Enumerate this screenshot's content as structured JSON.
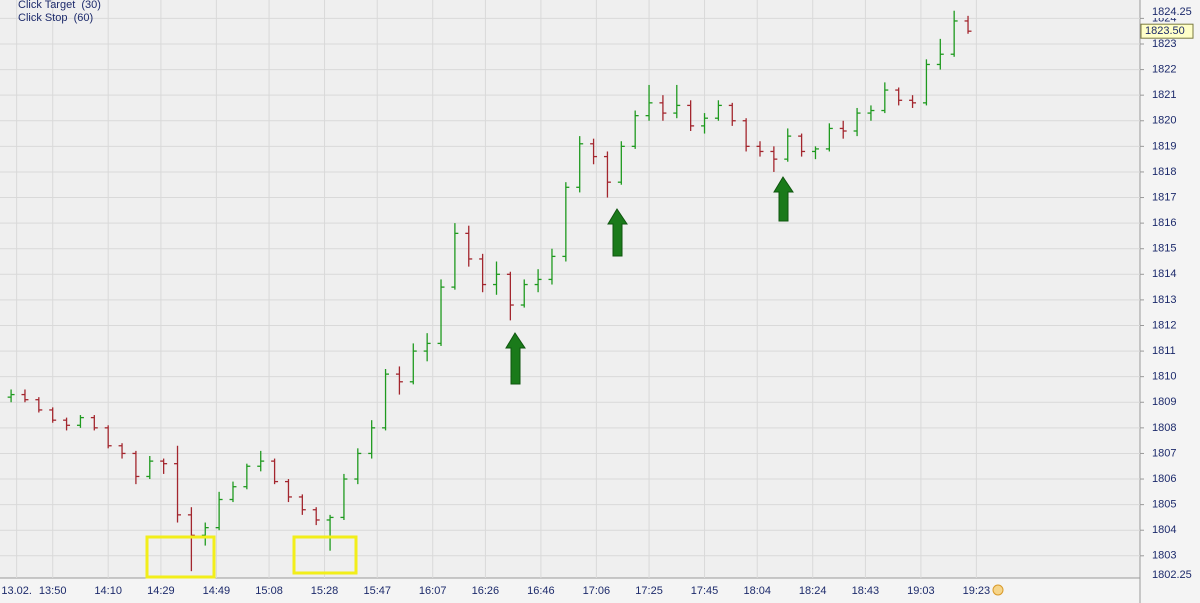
{
  "chart_data": {
    "type": "ohlc",
    "annotations": [
      "Click Target  (30)",
      "Click Stop  (60)"
    ],
    "x": [
      815,
      820,
      825,
      830,
      835,
      840,
      845,
      850,
      855,
      860,
      865,
      870,
      875,
      880,
      885,
      890,
      895,
      900,
      905,
      910,
      915,
      920,
      925,
      930,
      935,
      940,
      945,
      950,
      955,
      960,
      965,
      970,
      975,
      980,
      985,
      990,
      995,
      1000,
      1005,
      1010,
      1015,
      1020,
      1025,
      1030,
      1035,
      1040,
      1045,
      1050,
      1055,
      1060,
      1065,
      1070,
      1075,
      1080,
      1085,
      1090,
      1095,
      1100,
      1105,
      1110,
      1115,
      1120,
      1125,
      1130,
      1135,
      1140,
      1145,
      1150,
      1155,
      1160
    ],
    "open": [
      1809.2,
      1809.3,
      1809.1,
      1808.7,
      1808.3,
      1808.1,
      1808.4,
      1808.0,
      1807.3,
      1807.0,
      1806.1,
      1806.7,
      1806.6,
      1804.6,
      1803.8,
      1804.1,
      1805.2,
      1805.7,
      1806.5,
      1806.7,
      1805.9,
      1805.3,
      1804.8,
      1804.4,
      1804.5,
      1806.0,
      1807.0,
      1808.0,
      1810.1,
      1809.8,
      1811.0,
      1811.3,
      1813.5,
      1815.6,
      1814.6,
      1813.6,
      1814.0,
      1812.8,
      1813.6,
      1813.8,
      1814.7,
      1817.4,
      1819.1,
      1818.6,
      1817.6,
      1819.0,
      1820.2,
      1820.7,
      1820.3,
      1820.6,
      1819.8,
      1820.1,
      1820.6,
      1820.0,
      1819.0,
      1818.8,
      1818.5,
      1819.4,
      1818.8,
      1818.9,
      1819.7,
      1819.6,
      1820.3,
      1820.4,
      1821.2,
      1820.8,
      1820.7,
      1822.2,
      1822.6,
      1823.9
    ],
    "high": [
      1809.5,
      1809.5,
      1809.2,
      1808.8,
      1808.4,
      1808.5,
      1808.5,
      1808.1,
      1807.4,
      1807.1,
      1806.9,
      1806.8,
      1807.3,
      1804.9,
      1804.3,
      1805.5,
      1805.9,
      1806.6,
      1807.1,
      1806.8,
      1806.0,
      1805.4,
      1804.9,
      1804.6,
      1806.2,
      1807.2,
      1808.3,
      1810.3,
      1810.4,
      1811.3,
      1811.7,
      1813.8,
      1816.0,
      1815.9,
      1814.8,
      1814.5,
      1814.1,
      1813.8,
      1814.2,
      1815.0,
      1817.6,
      1819.4,
      1819.3,
      1818.8,
      1819.2,
      1820.4,
      1821.4,
      1821.0,
      1821.4,
      1820.8,
      1820.3,
      1820.8,
      1820.7,
      1820.1,
      1819.2,
      1819.0,
      1819.7,
      1819.5,
      1819.0,
      1819.9,
      1820.0,
      1820.5,
      1820.6,
      1821.5,
      1821.3,
      1821.0,
      1822.4,
      1823.2,
      1824.3,
      1824.1
    ],
    "low": [
      1809.0,
      1809.0,
      1808.6,
      1808.2,
      1807.9,
      1808.0,
      1807.9,
      1807.2,
      1806.8,
      1805.8,
      1806.0,
      1806.2,
      1804.3,
      1802.4,
      1803.4,
      1804.0,
      1805.1,
      1805.6,
      1806.3,
      1805.8,
      1805.1,
      1804.6,
      1804.2,
      1803.2,
      1804.4,
      1805.8,
      1806.8,
      1807.9,
      1809.3,
      1809.7,
      1810.6,
      1811.2,
      1813.4,
      1814.3,
      1813.3,
      1813.2,
      1812.2,
      1812.7,
      1813.3,
      1813.6,
      1814.5,
      1817.2,
      1818.3,
      1817.0,
      1817.5,
      1818.9,
      1820.0,
      1820.0,
      1820.1,
      1819.6,
      1819.5,
      1820.0,
      1819.8,
      1818.8,
      1818.6,
      1818.0,
      1818.4,
      1818.6,
      1818.5,
      1818.8,
      1819.3,
      1819.4,
      1820.0,
      1820.3,
      1820.6,
      1820.5,
      1820.6,
      1822.0,
      1822.5,
      1823.4
    ],
    "close": [
      1809.3,
      1809.1,
      1808.7,
      1808.3,
      1808.1,
      1808.4,
      1808.0,
      1807.3,
      1807.0,
      1806.1,
      1806.7,
      1806.6,
      1804.6,
      1803.8,
      1804.1,
      1805.2,
      1805.7,
      1806.5,
      1806.7,
      1805.9,
      1805.3,
      1804.8,
      1804.4,
      1804.5,
      1806.0,
      1807.0,
      1808.0,
      1810.1,
      1809.8,
      1811.0,
      1811.3,
      1813.5,
      1815.6,
      1814.6,
      1813.6,
      1814.0,
      1812.8,
      1813.6,
      1813.8,
      1814.7,
      1817.4,
      1819.1,
      1818.6,
      1817.6,
      1819.0,
      1820.2,
      1820.7,
      1820.3,
      1820.6,
      1819.8,
      1820.1,
      1820.6,
      1820.0,
      1819.0,
      1818.8,
      1818.5,
      1819.4,
      1818.8,
      1818.9,
      1819.7,
      1819.6,
      1820.3,
      1820.4,
      1821.2,
      1820.8,
      1820.7,
      1822.2,
      1822.6,
      1823.9,
      1823.5
    ],
    "up_color": "#1f9a1f",
    "down_color": "#a3262e",
    "last_price": {
      "value": 1823.5,
      "label": "1823.50"
    },
    "xlim": [
      811,
      1222
    ],
    "xticks": [
      {
        "value": 817,
        "label": "13.02."
      },
      {
        "value": 830,
        "label": "13:50"
      },
      {
        "value": 850,
        "label": "14:10"
      },
      {
        "value": 869,
        "label": "14:29"
      },
      {
        "value": 889,
        "label": "14:49"
      },
      {
        "value": 908,
        "label": "15:08"
      },
      {
        "value": 928,
        "label": "15:28"
      },
      {
        "value": 947,
        "label": "15:47"
      },
      {
        "value": 967,
        "label": "16:07"
      },
      {
        "value": 986,
        "label": "16:26"
      },
      {
        "value": 1006,
        "label": "16:46"
      },
      {
        "value": 1026,
        "label": "17:06"
      },
      {
        "value": 1045,
        "label": "17:25"
      },
      {
        "value": 1065,
        "label": "17:45"
      },
      {
        "value": 1084,
        "label": "18:04"
      },
      {
        "value": 1104,
        "label": "18:24"
      },
      {
        "value": 1123,
        "label": "18:43"
      },
      {
        "value": 1143,
        "label": "19:03"
      },
      {
        "value": 1163,
        "label": "19:23"
      }
    ],
    "ylim": [
      1802.25,
      1824.25
    ],
    "yticks": [
      1803,
      1804,
      1805,
      1806,
      1807,
      1808,
      1809,
      1810,
      1811,
      1812,
      1813,
      1814,
      1815,
      1816,
      1817,
      1818,
      1819,
      1820,
      1821,
      1822,
      1823,
      1824
    ],
    "grid": true
  }
}
